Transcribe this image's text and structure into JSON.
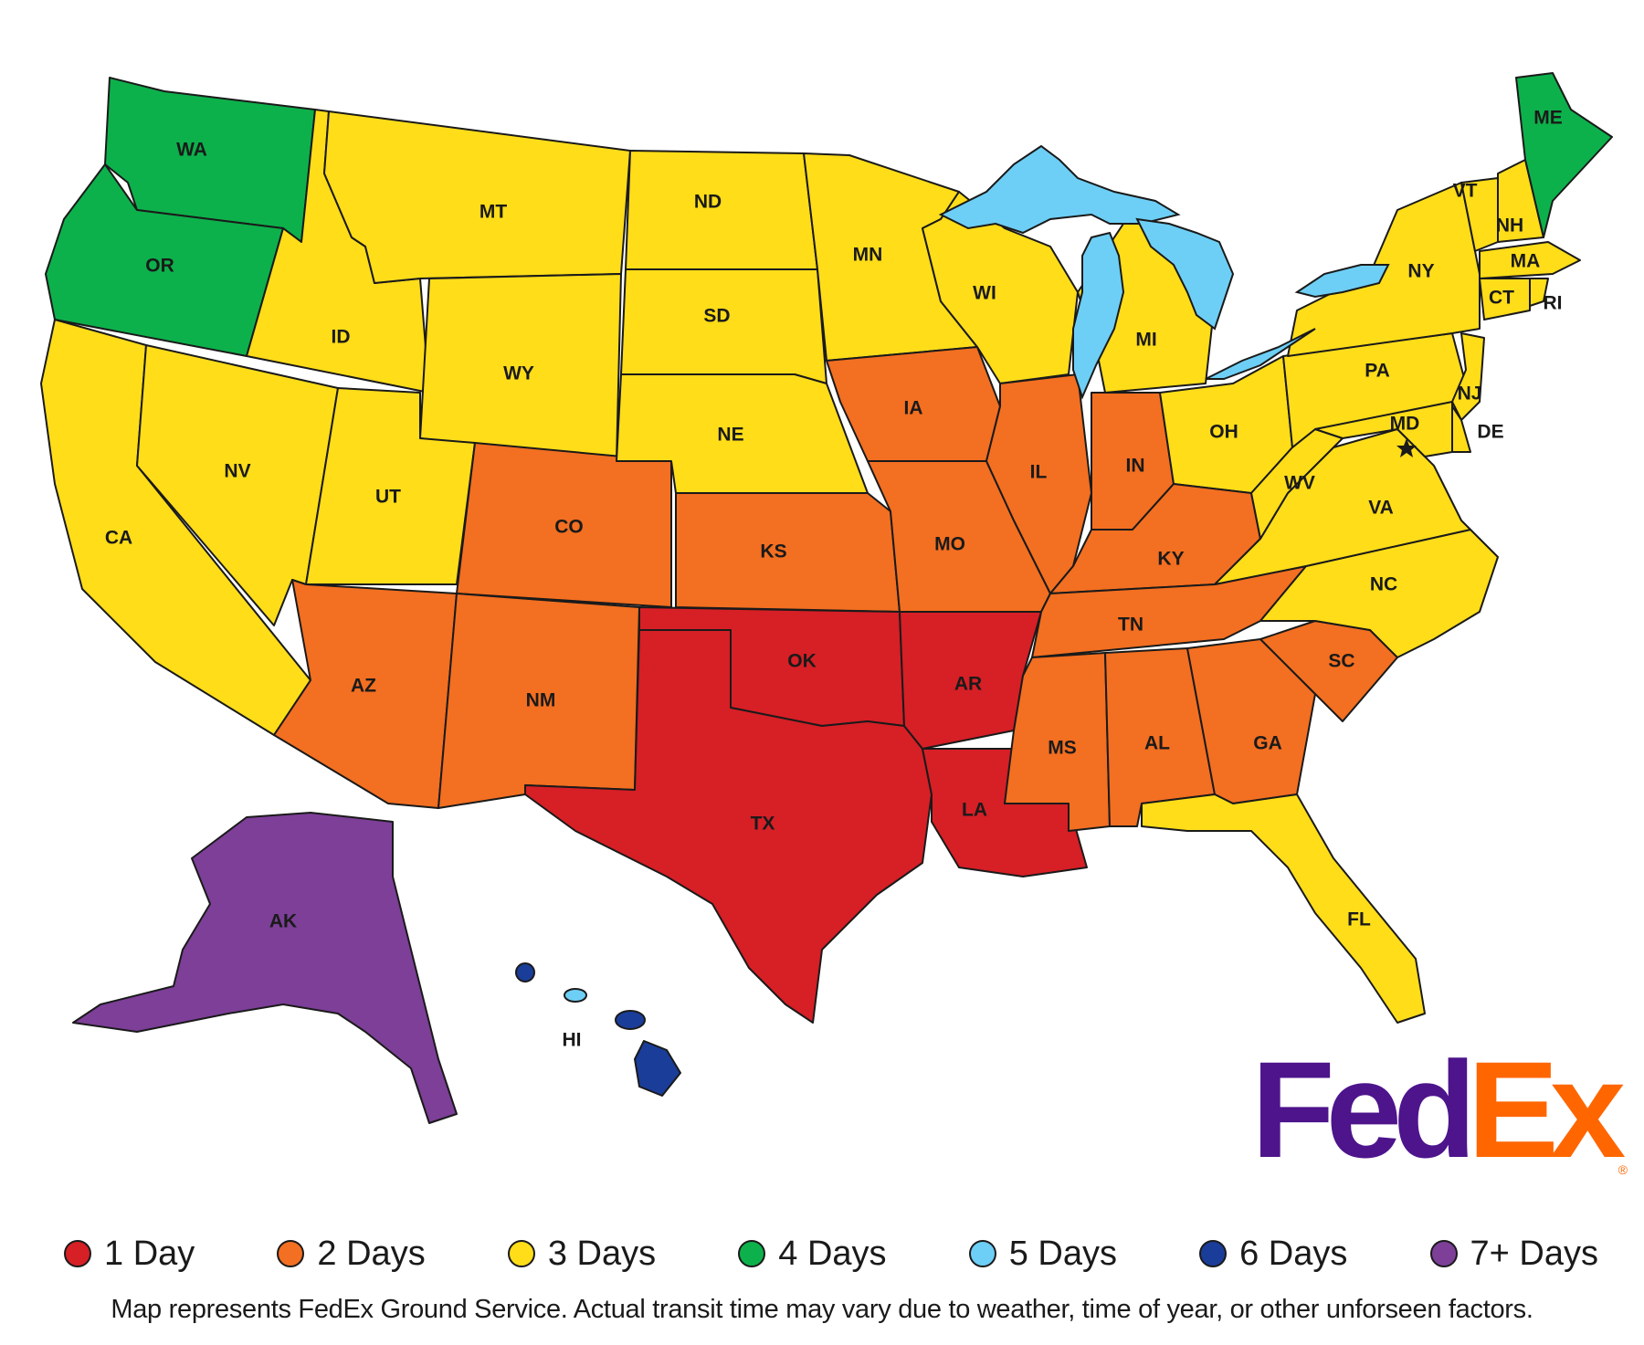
{
  "map": {
    "colors": {
      "1": "#d71f26",
      "2": "#f36f21",
      "3": "#ffdd19",
      "4": "#0db14b",
      "5": "#6dcff6",
      "6": "#1a3d99",
      "7": "#7d3f98"
    },
    "state_labels": {
      "WA": "WA",
      "OR": "OR",
      "CA": "CA",
      "NV": "NV",
      "ID": "ID",
      "MT": "MT",
      "WY": "WY",
      "UT": "UT",
      "AZ": "AZ",
      "CO": "CO",
      "NM": "NM",
      "ND": "ND",
      "SD": "SD",
      "NE": "NE",
      "KS": "KS",
      "OK": "OK",
      "TX": "TX",
      "MN": "MN",
      "IA": "IA",
      "MO": "MO",
      "AR": "AR",
      "LA": "LA",
      "WI": "WI",
      "IL": "IL",
      "MI": "MI",
      "IN": "IN",
      "OH": "OH",
      "KY": "KY",
      "TN": "TN",
      "MS": "MS",
      "AL": "AL",
      "GA": "GA",
      "FL": "FL",
      "SC": "SC",
      "NC": "NC",
      "VA": "VA",
      "WV": "WV",
      "PA": "PA",
      "NY": "NY",
      "VT": "VT",
      "NH": "NH",
      "ME": "ME",
      "MA": "MA",
      "CT": "CT",
      "RI": "RI",
      "NJ": "NJ",
      "DE": "DE",
      "MD": "MD",
      "AK": "AK",
      "HI": "HI"
    }
  },
  "logo": {
    "fed": "Fed",
    "ex": "Ex",
    "registered": "®",
    "purple": "#4d148c",
    "orange": "#ff6600"
  },
  "legend": [
    {
      "label": "1 Day",
      "color": "#d71f26"
    },
    {
      "label": "2 Days",
      "color": "#f36f21"
    },
    {
      "label": "3 Days",
      "color": "#ffdd19"
    },
    {
      "label": "4 Days",
      "color": "#0db14b"
    },
    {
      "label": "5 Days",
      "color": "#6dcff6"
    },
    {
      "label": "6 Days",
      "color": "#1a3d99"
    },
    {
      "label": "7+ Days",
      "color": "#7d3f98"
    }
  ],
  "note": "Map represents FedEx Ground Service. Actual transit time may vary due to weather, time of year, or other unforseen factors."
}
